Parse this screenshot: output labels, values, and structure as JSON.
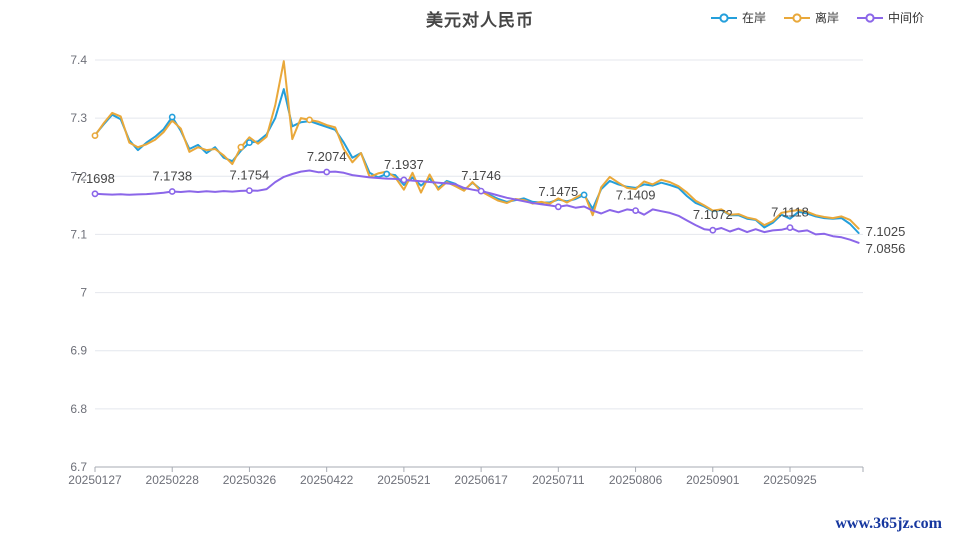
{
  "title": "美元对人民币",
  "watermark": "www.365jz.com",
  "legend": [
    {
      "id": "onshore",
      "label": "在岸",
      "color": "#249fdb"
    },
    {
      "id": "offshore",
      "label": "离岸",
      "color": "#e9a83a"
    },
    {
      "id": "central-parity",
      "label": "中间价",
      "color": "#8b66e9"
    }
  ],
  "chart_data": {
    "type": "line",
    "title": "美元对人民币",
    "ylim": [
      6.7,
      7.4
    ],
    "grid": true,
    "legend_position": "top-right",
    "y_ticks": [
      6.7,
      6.8,
      6.9,
      7.0,
      7.1,
      7.2,
      7.3,
      7.4
    ],
    "y_tick_labels": [
      "6.7",
      "6.8",
      "6.9",
      "7",
      "7.1",
      "7.2",
      "7.3",
      "7.4"
    ],
    "x_tick_labels": [
      "20250127",
      "20250228",
      "20250326",
      "20250422",
      "20250521",
      "20250617",
      "20250711",
      "20250806",
      "20250901",
      "20250925"
    ],
    "points_per_tick": 9,
    "axis_label_color": "#6e7079",
    "grid_color": "#e4e7ed",
    "axis_line_color": "#a7abb3",
    "value_label_color": "#464646",
    "series": [
      {
        "id": "onshore",
        "name": "在岸",
        "color": "#249fdb",
        "end_label": "7.1025",
        "marker_indices": [
          9,
          18,
          34,
          57
        ],
        "values": [
          7.271,
          7.289,
          7.306,
          7.298,
          7.262,
          7.245,
          7.258,
          7.268,
          7.281,
          7.302,
          7.278,
          7.247,
          7.254,
          7.24,
          7.25,
          7.232,
          7.226,
          7.244,
          7.258,
          7.26,
          7.272,
          7.3,
          7.35,
          7.286,
          7.293,
          7.295,
          7.29,
          7.285,
          7.28,
          7.258,
          7.232,
          7.24,
          7.206,
          7.198,
          7.204,
          7.202,
          7.185,
          7.198,
          7.184,
          7.196,
          7.18,
          7.192,
          7.187,
          7.176,
          7.189,
          7.177,
          7.168,
          7.161,
          7.156,
          7.159,
          7.162,
          7.156,
          7.155,
          7.155,
          7.16,
          7.157,
          7.161,
          7.168,
          7.144,
          7.178,
          7.192,
          7.186,
          7.182,
          7.18,
          7.186,
          7.184,
          7.189,
          7.185,
          7.18,
          7.166,
          7.154,
          7.148,
          7.14,
          7.142,
          7.133,
          7.133,
          7.127,
          7.125,
          7.112,
          7.12,
          7.134,
          7.127,
          7.139,
          7.136,
          7.131,
          7.128,
          7.127,
          7.128,
          7.118,
          7.1025
        ]
      },
      {
        "id": "offshore",
        "name": "离岸",
        "color": "#e9a83a",
        "end_label": "",
        "marker_indices": [
          0,
          17,
          25
        ],
        "values": [
          7.27,
          7.291,
          7.309,
          7.303,
          7.258,
          7.25,
          7.255,
          7.263,
          7.276,
          7.296,
          7.282,
          7.242,
          7.25,
          7.245,
          7.247,
          7.236,
          7.221,
          7.25,
          7.267,
          7.256,
          7.268,
          7.322,
          7.398,
          7.264,
          7.3,
          7.297,
          7.294,
          7.288,
          7.284,
          7.247,
          7.224,
          7.24,
          7.199,
          7.205,
          7.208,
          7.198,
          7.177,
          7.206,
          7.172,
          7.203,
          7.177,
          7.19,
          7.183,
          7.175,
          7.19,
          7.174,
          7.166,
          7.158,
          7.154,
          7.161,
          7.159,
          7.153,
          7.156,
          7.153,
          7.162,
          7.155,
          7.163,
          7.171,
          7.133,
          7.181,
          7.199,
          7.189,
          7.18,
          7.178,
          7.191,
          7.186,
          7.194,
          7.19,
          7.183,
          7.172,
          7.158,
          7.15,
          7.141,
          7.143,
          7.134,
          7.135,
          7.129,
          7.126,
          7.116,
          7.123,
          7.137,
          7.14,
          7.142,
          7.139,
          7.133,
          7.13,
          7.128,
          7.131,
          7.125,
          7.11
        ]
      },
      {
        "id": "central-parity",
        "name": "中间价",
        "color": "#8b66e9",
        "end_label": "7.0856",
        "marker_indices": [
          0,
          9,
          18,
          27,
          36,
          45,
          54,
          63,
          72,
          81
        ],
        "point_labels": [
          {
            "index": 0,
            "text": "7.1698"
          },
          {
            "index": 9,
            "text": "7.1738"
          },
          {
            "index": 18,
            "text": "7.1754"
          },
          {
            "index": 27,
            "text": "7.2074"
          },
          {
            "index": 36,
            "text": "7.1937"
          },
          {
            "index": 45,
            "text": "7.1746"
          },
          {
            "index": 54,
            "text": "7.1475"
          },
          {
            "index": 63,
            "text": "7.1409"
          },
          {
            "index": 72,
            "text": "7.1072"
          },
          {
            "index": 81,
            "text": "7.1118"
          }
        ],
        "values": [
          7.1698,
          7.1692,
          7.1685,
          7.169,
          7.1682,
          7.1688,
          7.1694,
          7.1704,
          7.1718,
          7.1738,
          7.173,
          7.1742,
          7.173,
          7.1744,
          7.1732,
          7.1746,
          7.1736,
          7.1748,
          7.1754,
          7.1752,
          7.178,
          7.19,
          7.199,
          7.204,
          7.208,
          7.21,
          7.207,
          7.2074,
          7.208,
          7.206,
          7.202,
          7.2,
          7.198,
          7.197,
          7.196,
          7.1955,
          7.1937,
          7.1925,
          7.1915,
          7.1902,
          7.189,
          7.1878,
          7.1862,
          7.18,
          7.177,
          7.1746,
          7.171,
          7.167,
          7.163,
          7.16,
          7.157,
          7.154,
          7.152,
          7.15,
          7.1475,
          7.15,
          7.146,
          7.148,
          7.141,
          7.136,
          7.142,
          7.138,
          7.143,
          7.1409,
          7.134,
          7.143,
          7.14,
          7.137,
          7.132,
          7.124,
          7.116,
          7.109,
          7.1072,
          7.111,
          7.105,
          7.11,
          7.104,
          7.109,
          7.104,
          7.107,
          7.108,
          7.1118,
          7.105,
          7.107,
          7.1,
          7.101,
          7.097,
          7.095,
          7.091,
          7.0856
        ]
      }
    ]
  }
}
